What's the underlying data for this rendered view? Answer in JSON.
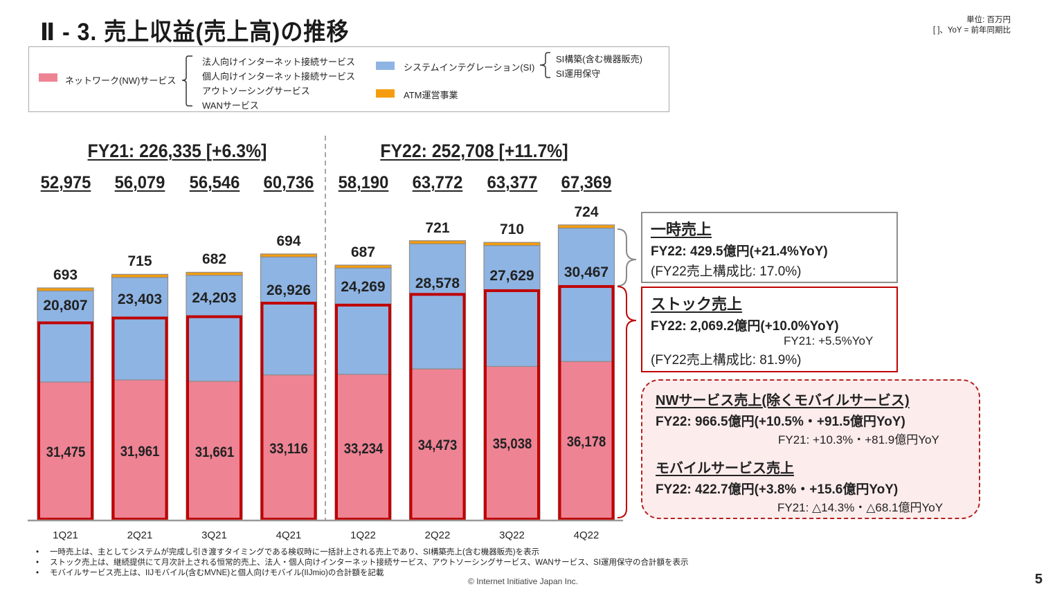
{
  "header": {
    "title": "Ⅱ - 3.  売上収益(売上高)の推移",
    "unit_label": "単位: 百万円",
    "yoy_label": "[   ]、YoY = 前年同期比",
    "page_number": "5"
  },
  "legend": {
    "nw": {
      "label": "ネットワーク(NW)サービス",
      "color": "#EE8394",
      "sub": [
        "法人向けインターネット接続サービス",
        "個人向けインターネット接続サービス",
        "アウトソーシングサービス",
        "WANサービス"
      ]
    },
    "si": {
      "label": "システムインテグレーション(SI)",
      "color": "#8EB4E3",
      "sub": [
        "SI構築(含む機器販売)",
        "SI運用保守"
      ]
    },
    "atm": {
      "label": "ATM運営事業",
      "color": "#F59D0E"
    }
  },
  "chart_data": {
    "type": "bar",
    "stacked": true,
    "categories": [
      "1Q21",
      "2Q21",
      "3Q21",
      "4Q21",
      "1Q22",
      "2Q22",
      "3Q22",
      "4Q22"
    ],
    "series": [
      {
        "name": "ネットワーク(NW)サービス",
        "color": "#EE8394",
        "values": [
          31475,
          31961,
          31661,
          33116,
          33234,
          34473,
          35038,
          36178
        ]
      },
      {
        "name": "システムインテグレーション(SI)",
        "color": "#8EB4E3",
        "values": [
          20807,
          23403,
          24203,
          26926,
          24269,
          28578,
          27629,
          30467
        ]
      },
      {
        "name": "ATM運営事業",
        "color": "#F59D0E",
        "values": [
          693,
          715,
          682,
          694,
          687,
          721,
          710,
          724
        ]
      }
    ],
    "totals": [
      52975,
      56079,
      56546,
      60736,
      58190,
      63772,
      63377,
      67369
    ],
    "total_labels": [
      "52,975",
      "56,079",
      "56,546",
      "60,736",
      "58,190",
      "63,772",
      "63,377",
      "67,369"
    ],
    "nw_labels": [
      "31,475",
      "31,961",
      "31,661",
      "33,116",
      "33,234",
      "34,473",
      "35,038",
      "36,178"
    ],
    "si_labels": [
      "20,807",
      "23,403",
      "24,203",
      "26,926",
      "24,269",
      "28,578",
      "27,629",
      "30,467"
    ],
    "atm_labels": [
      "693",
      "715",
      "682",
      "694",
      "687",
      "721",
      "710",
      "724"
    ],
    "stock_outline_top_values": [
      45000,
      46100,
      46400,
      49500,
      49050,
      51500,
      52350,
      53300
    ],
    "stock_outline_color": "#C00000",
    "fiscal_years": [
      {
        "label": "FY21: 226,335 [+6.3%]"
      },
      {
        "label": "FY22: 252,708 [+11.7%]"
      }
    ],
    "ylim": [
      0,
      70000
    ],
    "title": "",
    "xlabel": "",
    "ylabel": "",
    "grid": false
  },
  "callouts": {
    "onetime": {
      "heading": "一時売上",
      "line1": "FY22: 429.5億円(+21.4%YoY)",
      "line2": "(FY22売上構成比: 17.0%)"
    },
    "stock": {
      "heading": "ストック売上",
      "line1": "FY22: 2,069.2億円(+10.0%YoY)",
      "line2": "FY21: +5.5%YoY",
      "line3": "(FY22売上構成比: 81.9%)"
    },
    "services": {
      "nw_heading": "NWサービス売上(除くモバイルサービス)",
      "nw_line1": "FY22: 966.5億円(+10.5%・+91.5億円YoY)",
      "nw_line2": "FY21: +10.3%・+81.9億円YoY",
      "mobile_heading": "モバイルサービス売上",
      "mobile_line1": "FY22: 422.7億円(+3.8%・+15.6億円YoY)",
      "mobile_line2": "FY21: △14.3%・△68.1億円YoY"
    }
  },
  "footnotes": [
    "一時売上は、主としてシステムが完成し引き渡すタイミングである検収時に一括計上される売上であり、SI構築売上(含む機器販売)を表示",
    "ストック売上は、継続提供にて月次計上される恒常的売上、法人・個人向けインターネット接続サービス、アウトソーシングサービス、WANサービス、SI運用保守の合計額を表示",
    "モバイルサービス売上は、IIJモバイル(含むMVNE)と個人向けモバイル(IIJmio)の合計額を記載"
  ],
  "copyright": "© Internet Initiative Japan Inc."
}
